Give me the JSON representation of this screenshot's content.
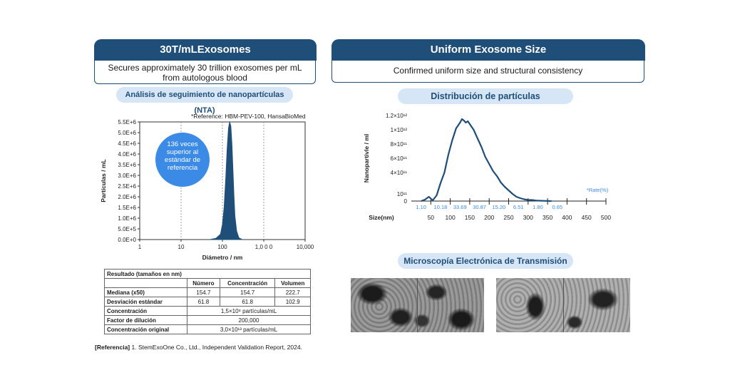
{
  "left_panel": {
    "title": "30T/mLExosomes",
    "subtitle_line1": "Secures approximately 30 trillion exosomes per mL",
    "subtitle_line2": "from autologous blood",
    "section_title": "Análisis de seguimiento de nanopartículas (NTA)",
    "reference_note": "*Reference: HBM-PEV-100, HansaBioMed",
    "callout": [
      "136 veces",
      "superior al",
      "estándar de",
      "referencia"
    ]
  },
  "right_panel": {
    "title": "Uniform Exosome Size",
    "subtitle": "Confirmed uniform size and structural consistency",
    "section_title": "Distribución de partículas",
    "tem_title": "Microscopía Electrónica de Transmisión"
  },
  "results_table": {
    "title": "Resultado (tamaños en nm)",
    "headers": [
      "Número",
      "Concentración",
      "Volumen"
    ],
    "rows": [
      {
        "label": "Mediana (x50)",
        "values": [
          "154.7",
          "154.7",
          "222.7"
        ]
      },
      {
        "label": "Desviación estándar",
        "values": [
          "61.8",
          "61.8",
          "102.9"
        ]
      }
    ],
    "concentracion_label": "Concentración",
    "concentracion_value": "1,5×10⁸ partículas/mL",
    "factor_label": "Factor de dilución",
    "factor_value": "200,000",
    "original_label": "Concentración original",
    "original_value": "3,0×10¹³ partículas/mL"
  },
  "footer": {
    "ref_label": "[Referencia]",
    "ref_text": "1. StemExoOne Co., Ltd., Independent Validation Report, 2024."
  },
  "chart_data": [
    {
      "type": "area",
      "xlabel": "Diámetro / nm",
      "ylabel": "Partículas / mL",
      "x_scale": "log",
      "xlim": [
        1,
        10000
      ],
      "ylim": [
        0,
        5500000
      ],
      "x_ticks": [
        "1",
        "10",
        "100",
        "1,0 0 0",
        "10,000"
      ],
      "y_ticks": [
        "0.0E+0",
        "5.0E+5",
        "1.0E+6",
        "1.5E+6",
        "2.0E+6",
        "2.5E+6",
        "3.0E+6",
        "3.5E+6",
        "4.0E+6",
        "4.5E+6",
        "5.0E+6",
        "5.5E+6"
      ],
      "x": [
        50,
        70,
        90,
        100,
        110,
        120,
        130,
        140,
        150,
        160,
        170,
        180,
        190,
        200,
        220,
        250,
        300
      ],
      "y": [
        0,
        60000,
        250000,
        700000,
        1500000,
        2800000,
        4200000,
        5200000,
        5500000,
        5300000,
        4400000,
        3200000,
        2000000,
        1100000,
        400000,
        80000,
        0
      ]
    },
    {
      "type": "line",
      "xlabel": "Size(nm)",
      "ylabel": "Nanopartivle / ml",
      "xlim": [
        0,
        500
      ],
      "ylim": [
        0,
        1200000000000
      ],
      "x_ticks": [
        "50",
        "100",
        "150",
        "200",
        "250",
        "300",
        "350",
        "400",
        "450",
        "500"
      ],
      "y_ticks": [
        "0",
        "10¹¹",
        "4×10¹¹",
        "6×10¹¹",
        "8×10¹¹",
        "1×10¹²",
        "1.2×10¹²"
      ],
      "rate_label": "*Rate(%)",
      "rate_values": [
        "1.10",
        "10.18",
        "33.69",
        "30.87",
        "15.20",
        "6.51",
        "1.80",
        "0.65"
      ],
      "x": [
        25,
        35,
        45,
        55,
        65,
        75,
        85,
        95,
        105,
        115,
        125,
        130,
        135,
        140,
        145,
        150,
        160,
        170,
        180,
        190,
        200,
        210,
        220,
        230,
        240,
        250,
        260,
        270,
        280,
        290,
        300,
        310,
        320,
        330,
        340,
        350,
        360
      ],
      "y": [
        0,
        20000000000.0,
        60000000000.0,
        10000000000.0,
        80000000000.0,
        250000000000.0,
        400000000000.0,
        650000000000.0,
        850000000000.0,
        1020000000000.0,
        1100000000000.0,
        1150000000000.0,
        1130000000000.0,
        1100000000000.0,
        1120000000000.0,
        1080000000000.0,
        1000000000000.0,
        880000000000.0,
        760000000000.0,
        620000000000.0,
        520000000000.0,
        420000000000.0,
        350000000000.0,
        260000000000.0,
        200000000000.0,
        150000000000.0,
        100000000000.0,
        60000000000.0,
        40000000000.0,
        25000000000.0,
        15000000000.0,
        15000000000.0,
        8000000000.0,
        5000000000.0,
        3000000000.0,
        1000000000.0,
        0
      ]
    }
  ]
}
